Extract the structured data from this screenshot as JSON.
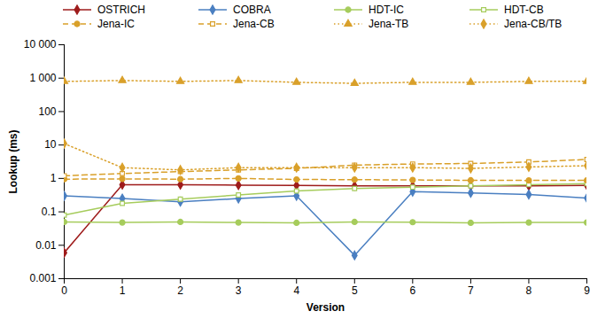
{
  "chart_data": {
    "type": "line",
    "x_label": "Version",
    "y_label": "Lookup (ms)",
    "x": [
      0,
      1,
      2,
      3,
      4,
      5,
      6,
      7,
      8,
      9
    ],
    "xlim": [
      0,
      9
    ],
    "xticks": [
      0,
      1,
      2,
      3,
      4,
      5,
      6,
      7,
      8,
      9
    ],
    "ylim": [
      0.001,
      10000
    ],
    "yticks": [
      0.001,
      0.01,
      0.1,
      1,
      10,
      100,
      {
        "value": 1000,
        "label": "1 000"
      },
      {
        "value": 10000,
        "label": "10 000"
      }
    ],
    "log": "y",
    "grid": false,
    "legend": "top",
    "series": [
      {
        "name": "OSTRICH",
        "color": "#9e1b1b",
        "marker": "diamond",
        "line_style": "solid",
        "values": [
          0.006,
          0.65,
          0.65,
          0.63,
          0.62,
          0.6,
          0.6,
          0.6,
          0.6,
          0.62
        ]
      },
      {
        "name": "COBRA",
        "color": "#4a7fc1",
        "marker": "diamond",
        "line_style": "solid",
        "values": [
          0.3,
          0.25,
          0.2,
          0.25,
          0.3,
          0.005,
          0.4,
          0.37,
          0.33,
          0.26
        ]
      },
      {
        "name": "HDT-IC",
        "color": "#a6cc5c",
        "marker": "circle",
        "line_style": "solid",
        "values": [
          0.05,
          0.048,
          0.05,
          0.048,
          0.047,
          0.05,
          0.049,
          0.047,
          0.048,
          0.048
        ]
      },
      {
        "name": "HDT-CB",
        "color": "#a6cc5c",
        "marker": "square_open",
        "line_style": "solid",
        "values": [
          0.08,
          0.18,
          0.24,
          0.32,
          0.42,
          0.5,
          0.55,
          0.6,
          0.65,
          0.7
        ]
      },
      {
        "name": "Jena-IC",
        "color": "#d9a02a",
        "marker": "circle",
        "line_style": "dashed",
        "values": [
          0.95,
          0.97,
          0.95,
          1.0,
          0.93,
          0.92,
          0.9,
          0.88,
          0.87,
          0.88
        ]
      },
      {
        "name": "Jena-CB",
        "color": "#d9a02a",
        "marker": "square_open",
        "line_style": "dashed",
        "values": [
          1.2,
          1.4,
          1.6,
          1.8,
          2.0,
          2.5,
          2.7,
          2.8,
          3.1,
          3.7
        ]
      },
      {
        "name": "Jena-TB",
        "color": "#d9a02a",
        "marker": "triangle",
        "line_style": "dotted",
        "values": [
          800,
          850,
          800,
          850,
          750,
          700,
          750,
          750,
          800,
          800
        ]
      },
      {
        "name": "Jena-CB/TB",
        "color": "#d9a02a",
        "marker": "diamond",
        "line_style": "dotted",
        "values": [
          11,
          2.1,
          1.8,
          2.1,
          2.1,
          2.1,
          2.1,
          2.0,
          2.2,
          2.4
        ]
      }
    ]
  }
}
